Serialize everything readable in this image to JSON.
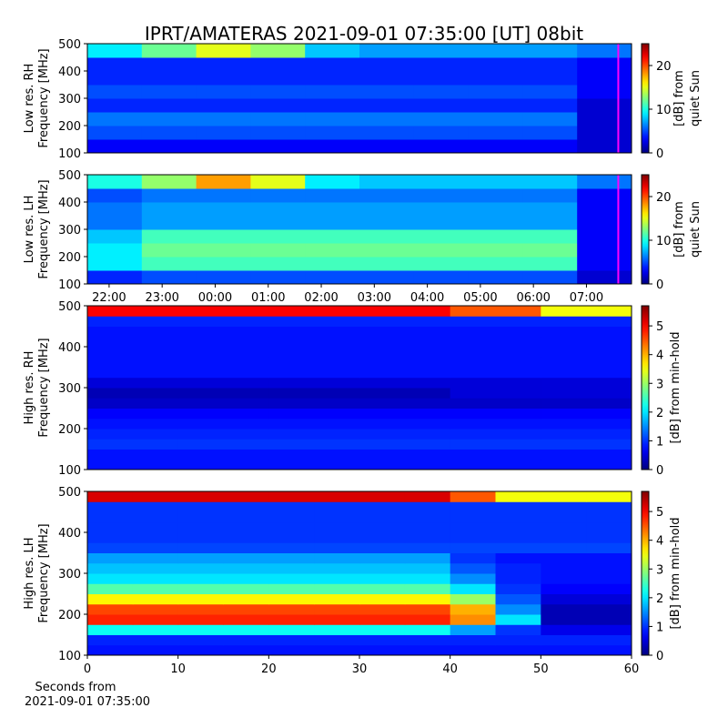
{
  "title": "IPRT/AMATERAS 2021-09-01 07:35:00 [UT]   08bit",
  "chart_data": [
    {
      "type": "heatmap",
      "ylabel": [
        "Low res. RH",
        "Frequency [MHz]"
      ],
      "ylim": [
        100,
        500
      ],
      "yticks": [
        100,
        200,
        300,
        400,
        500
      ],
      "xlim": [
        21.59,
        31.85
      ],
      "marker": {
        "x": 31.6,
        "color": "#ff00ff"
      },
      "colorbar": {
        "label": [
          "[dB] from",
          "quiet Sun"
        ],
        "lim": [
          0,
          25
        ],
        "ticks": [
          0,
          10,
          20
        ],
        "colormap": "jet"
      },
      "z": [
        [
          3,
          3,
          3,
          3,
          3,
          3,
          3,
          3,
          3,
          2
        ],
        [
          5,
          5,
          5,
          5,
          5,
          5,
          5,
          5,
          5,
          2
        ],
        [
          6,
          6,
          6,
          6,
          6,
          6,
          6,
          6,
          6,
          2
        ],
        [
          4,
          4,
          4,
          4,
          4,
          4,
          4,
          4,
          4,
          2
        ],
        [
          5,
          5,
          5,
          5,
          5,
          5,
          5,
          5,
          5,
          3
        ],
        [
          4,
          4,
          4,
          4,
          4,
          4,
          4,
          4,
          4,
          3
        ],
        [
          4,
          4,
          4,
          4,
          4,
          4,
          4,
          4,
          4,
          3
        ],
        [
          9,
          12,
          15,
          13,
          8,
          7,
          7,
          7,
          7,
          6
        ]
      ]
    },
    {
      "type": "heatmap",
      "ylabel": [
        "Low res. LH",
        "Frequency [MHz]"
      ],
      "ylim": [
        100,
        500
      ],
      "yticks": [
        100,
        200,
        300,
        400,
        500
      ],
      "xlim": [
        21.59,
        31.85
      ],
      "xticks": [
        {
          "value": 22,
          "label": "22:00"
        },
        {
          "value": 23,
          "label": "23:00"
        },
        {
          "value": 24,
          "label": "00:00"
        },
        {
          "value": 25,
          "label": "01:00"
        },
        {
          "value": 26,
          "label": "02:00"
        },
        {
          "value": 27,
          "label": "03:00"
        },
        {
          "value": 28,
          "label": "04:00"
        },
        {
          "value": 29,
          "label": "05:00"
        },
        {
          "value": 30,
          "label": "06:00"
        },
        {
          "value": 31,
          "label": "07:00"
        }
      ],
      "marker": {
        "x": 31.6,
        "color": "#ff00ff"
      },
      "colorbar": {
        "label": [
          "[dB] from",
          "quiet Sun"
        ],
        "lim": [
          0,
          25
        ],
        "ticks": [
          0,
          10,
          20
        ],
        "colormap": "jet"
      },
      "z": [
        [
          4,
          5,
          5,
          5,
          5,
          5,
          5,
          5,
          5,
          2
        ],
        [
          9,
          11,
          11,
          11,
          11,
          11,
          11,
          11,
          11,
          3
        ],
        [
          9,
          12,
          12,
          12,
          12,
          12,
          12,
          12,
          12,
          3
        ],
        [
          8,
          11,
          11,
          11,
          11,
          11,
          11,
          11,
          11,
          3
        ],
        [
          6,
          7,
          7,
          7,
          7,
          7,
          7,
          7,
          7,
          3
        ],
        [
          6,
          7,
          7,
          7,
          7,
          7,
          7,
          7,
          7,
          3
        ],
        [
          5,
          6,
          6,
          6,
          6,
          6,
          6,
          6,
          6,
          3
        ],
        [
          10,
          13,
          18,
          15,
          9,
          8,
          8,
          8,
          8,
          6
        ]
      ]
    },
    {
      "type": "heatmap",
      "ylabel": [
        "High res. RH",
        "Frequency [MHz]"
      ],
      "ylim": [
        100,
        500
      ],
      "yticks": [
        100,
        200,
        300,
        400,
        500
      ],
      "xlim": [
        0,
        60
      ],
      "colorbar": {
        "label": [
          "[dB] from min-hold"
        ],
        "lim": [
          0,
          5.7
        ],
        "ticks": [
          0,
          1,
          2,
          3,
          4,
          5
        ],
        "colormap": "jet"
      },
      "z": [
        [
          0.8,
          0.8,
          0.8,
          0.8,
          0.8,
          0.8
        ],
        [
          0.8,
          0.8,
          0.8,
          0.8,
          0.8,
          0.8
        ],
        [
          1.0,
          1.0,
          1.0,
          1.0,
          1.0,
          1.0
        ],
        [
          0.9,
          0.9,
          0.9,
          0.9,
          0.9,
          0.9
        ],
        [
          0.8,
          0.8,
          0.8,
          0.8,
          0.8,
          0.8
        ],
        [
          0.7,
          0.7,
          0.7,
          0.7,
          0.7,
          0.7
        ],
        [
          0.4,
          0.4,
          0.4,
          0.4,
          0.4,
          0.4
        ],
        [
          0.3,
          0.3,
          0.3,
          0.3,
          0.5,
          0.5
        ],
        [
          0.5,
          0.5,
          0.5,
          0.5,
          0.5,
          0.5
        ],
        [
          0.8,
          0.8,
          0.8,
          0.8,
          0.8,
          0.8
        ],
        [
          0.8,
          0.8,
          0.8,
          0.8,
          0.8,
          0.8
        ],
        [
          0.8,
          0.8,
          0.8,
          0.8,
          0.8,
          0.8
        ],
        [
          0.8,
          0.8,
          0.8,
          0.8,
          0.8,
          0.8
        ],
        [
          0.8,
          0.8,
          0.8,
          0.8,
          0.8,
          0.8
        ],
        [
          0.9,
          0.9,
          0.9,
          0.9,
          0.9,
          0.9
        ],
        [
          5,
          5,
          5,
          5,
          4.5,
          3.5
        ]
      ]
    },
    {
      "type": "heatmap",
      "ylabel": [
        "High res. LH",
        "Frequency [MHz]"
      ],
      "xlabel": [
        "Seconds from",
        "2021-09-01 07:35:00"
      ],
      "ylim": [
        100,
        500
      ],
      "yticks": [
        100,
        200,
        300,
        400,
        500
      ],
      "xlim": [
        0,
        60
      ],
      "xticks": [
        0,
        10,
        20,
        30,
        40,
        50,
        60
      ],
      "colorbar": {
        "label": [
          "[dB] from min-hold"
        ],
        "lim": [
          0,
          5.7
        ],
        "ticks": [
          0,
          1,
          2,
          3,
          4,
          5
        ],
        "colormap": "jet"
      },
      "z": [
        [
          0.8,
          0.8,
          0.8,
          0.8,
          0.8,
          0.8,
          0.8,
          0.8,
          0.8,
          0.8,
          0.8,
          0.8
        ],
        [
          0.9,
          0.9,
          0.9,
          0.9,
          0.9,
          0.9,
          0.9,
          0.9,
          0.9,
          0.9,
          0.9,
          0.9
        ],
        [
          2.2,
          2.2,
          2.2,
          2.2,
          2.2,
          2.2,
          2.2,
          2.2,
          1.6,
          1.0,
          0.6,
          0.6
        ],
        [
          4.8,
          4.8,
          4.8,
          4.8,
          4.8,
          4.8,
          4.8,
          4.8,
          4.2,
          2.0,
          0.3,
          0.3
        ],
        [
          4.6,
          4.6,
          4.6,
          4.6,
          4.6,
          4.6,
          4.6,
          4.6,
          4.0,
          1.5,
          0.3,
          0.3
        ],
        [
          3.6,
          3.6,
          3.6,
          3.6,
          3.6,
          3.6,
          3.6,
          3.6,
          3.0,
          1.2,
          0.5,
          0.5
        ],
        [
          2.6,
          2.6,
          2.6,
          2.6,
          2.6,
          2.6,
          2.6,
          2.6,
          2.0,
          1.0,
          0.7,
          0.7
        ],
        [
          2.0,
          2.0,
          2.0,
          2.0,
          2.0,
          2.0,
          2.0,
          2.0,
          1.5,
          0.9,
          0.8,
          0.8
        ],
        [
          1.8,
          1.8,
          1.8,
          1.8,
          1.8,
          1.8,
          1.8,
          1.8,
          1.2,
          0.9,
          0.8,
          0.8
        ],
        [
          1.6,
          1.6,
          1.6,
          1.6,
          1.6,
          1.6,
          1.6,
          1.6,
          1.0,
          0.8,
          0.8,
          0.8
        ],
        [
          1.1,
          1.1,
          1.1,
          1.1,
          1.1,
          1.1,
          1.1,
          1.1,
          1.1,
          1.1,
          1.1,
          1.1
        ],
        [
          1.0,
          1.0,
          1.0,
          1.0,
          1.0,
          1.0,
          1.0,
          1.0,
          1.0,
          1.0,
          1.0,
          1.0
        ],
        [
          1.0,
          1.0,
          1.0,
          1.0,
          1.0,
          1.0,
          1.0,
          1.0,
          1.0,
          1.0,
          1.0,
          1.0
        ],
        [
          1.0,
          1.0,
          1.0,
          1.0,
          1.0,
          1.0,
          1.0,
          1.0,
          1.0,
          1.0,
          1.0,
          1.0
        ],
        [
          1.0,
          1.0,
          1.0,
          1.0,
          1.0,
          1.0,
          1.0,
          1.0,
          1.0,
          1.0,
          1.0,
          1.0
        ],
        [
          5.2,
          5.2,
          5.2,
          5.2,
          5.2,
          5.2,
          5.2,
          5.2,
          4.5,
          3.5,
          3.5,
          3.5
        ]
      ]
    }
  ]
}
